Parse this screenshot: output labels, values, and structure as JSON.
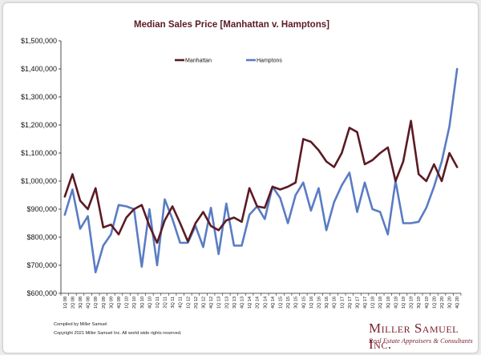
{
  "chart_data": {
    "type": "line",
    "title": "Median Sales Price [Manhattan v. Hamptons]",
    "xlabel": "",
    "ylabel": "",
    "ylim": [
      600000,
      1500000
    ],
    "yticks": [
      600000,
      700000,
      800000,
      900000,
      1000000,
      1100000,
      1200000,
      1300000,
      1400000,
      1500000
    ],
    "ytick_labels": [
      "$600,000",
      "$700,000",
      "$800,000",
      "$900,000",
      "$1,000,000",
      "$1,100,000",
      "$1,200,000",
      "$1,300,000",
      "$1,400,000",
      "$1,500,000"
    ],
    "grid": false,
    "legend_position": "top",
    "categories": [
      "1Q 08",
      "2Q 08",
      "3Q 08",
      "4Q 08",
      "1Q 09",
      "2Q 09",
      "3Q 09",
      "4Q 09",
      "1Q 10",
      "2Q 10",
      "3Q 10",
      "4Q 10",
      "1Q 11",
      "2Q 11",
      "3Q 11",
      "4Q 11",
      "1Q 12",
      "2Q 12",
      "3Q 12",
      "4Q 12",
      "1Q 13",
      "2Q 13",
      "3Q 13",
      "4Q 13",
      "1Q 14",
      "2Q 14",
      "3Q 14",
      "4Q 14",
      "1Q 15",
      "2Q 15",
      "3Q 15",
      "4Q 15",
      "1Q 16",
      "2Q 16",
      "3Q 16",
      "4Q 16",
      "1Q 17",
      "2Q 17",
      "3Q 17",
      "4Q 17",
      "1Q 18",
      "2Q 18",
      "3Q 18",
      "4Q 18",
      "1Q 19",
      "2Q 19",
      "3Q 19",
      "4Q 19",
      "1Q 20",
      "2Q 20",
      "3Q 20",
      "4Q 20"
    ],
    "series": [
      {
        "name": "Manhattan",
        "color": "#5b1a24",
        "values": [
          945000,
          1025000,
          930000,
          900000,
          975000,
          835000,
          845000,
          810000,
          870000,
          900000,
          915000,
          840000,
          780000,
          860000,
          910000,
          850000,
          785000,
          850000,
          890000,
          840000,
          825000,
          860000,
          870000,
          855000,
          975000,
          910000,
          905000,
          980000,
          970000,
          980000,
          995000,
          1150000,
          1140000,
          1110000,
          1070000,
          1050000,
          1100000,
          1190000,
          1175000,
          1060000,
          1075000,
          1100000,
          1120000,
          1000000,
          1070000,
          1215000,
          1025000,
          1000000,
          1060000,
          1000000,
          1100000,
          1050000
        ]
      },
      {
        "name": "Hamptons",
        "color": "#5a7cc4",
        "values": [
          880000,
          970000,
          830000,
          875000,
          675000,
          770000,
          810000,
          915000,
          910000,
          900000,
          695000,
          900000,
          700000,
          935000,
          865000,
          780000,
          780000,
          840000,
          765000,
          905000,
          740000,
          920000,
          770000,
          770000,
          880000,
          910000,
          865000,
          980000,
          940000,
          850000,
          950000,
          995000,
          895000,
          975000,
          825000,
          925000,
          985000,
          1030000,
          890000,
          995000,
          900000,
          890000,
          810000,
          1000000,
          850000,
          850000,
          855000,
          905000,
          980000,
          1070000,
          1195000,
          1400000
        ]
      }
    ]
  },
  "footer": {
    "compiled": "Compiled by Miller Samuel",
    "copyright": "Copyright 2021 Miller Samuel Inc.  All world wide rights reserved.",
    "brand_name": "Miller Samuel Inc.",
    "brand_tagline": "Real Estate Appraisers & Consultants"
  }
}
